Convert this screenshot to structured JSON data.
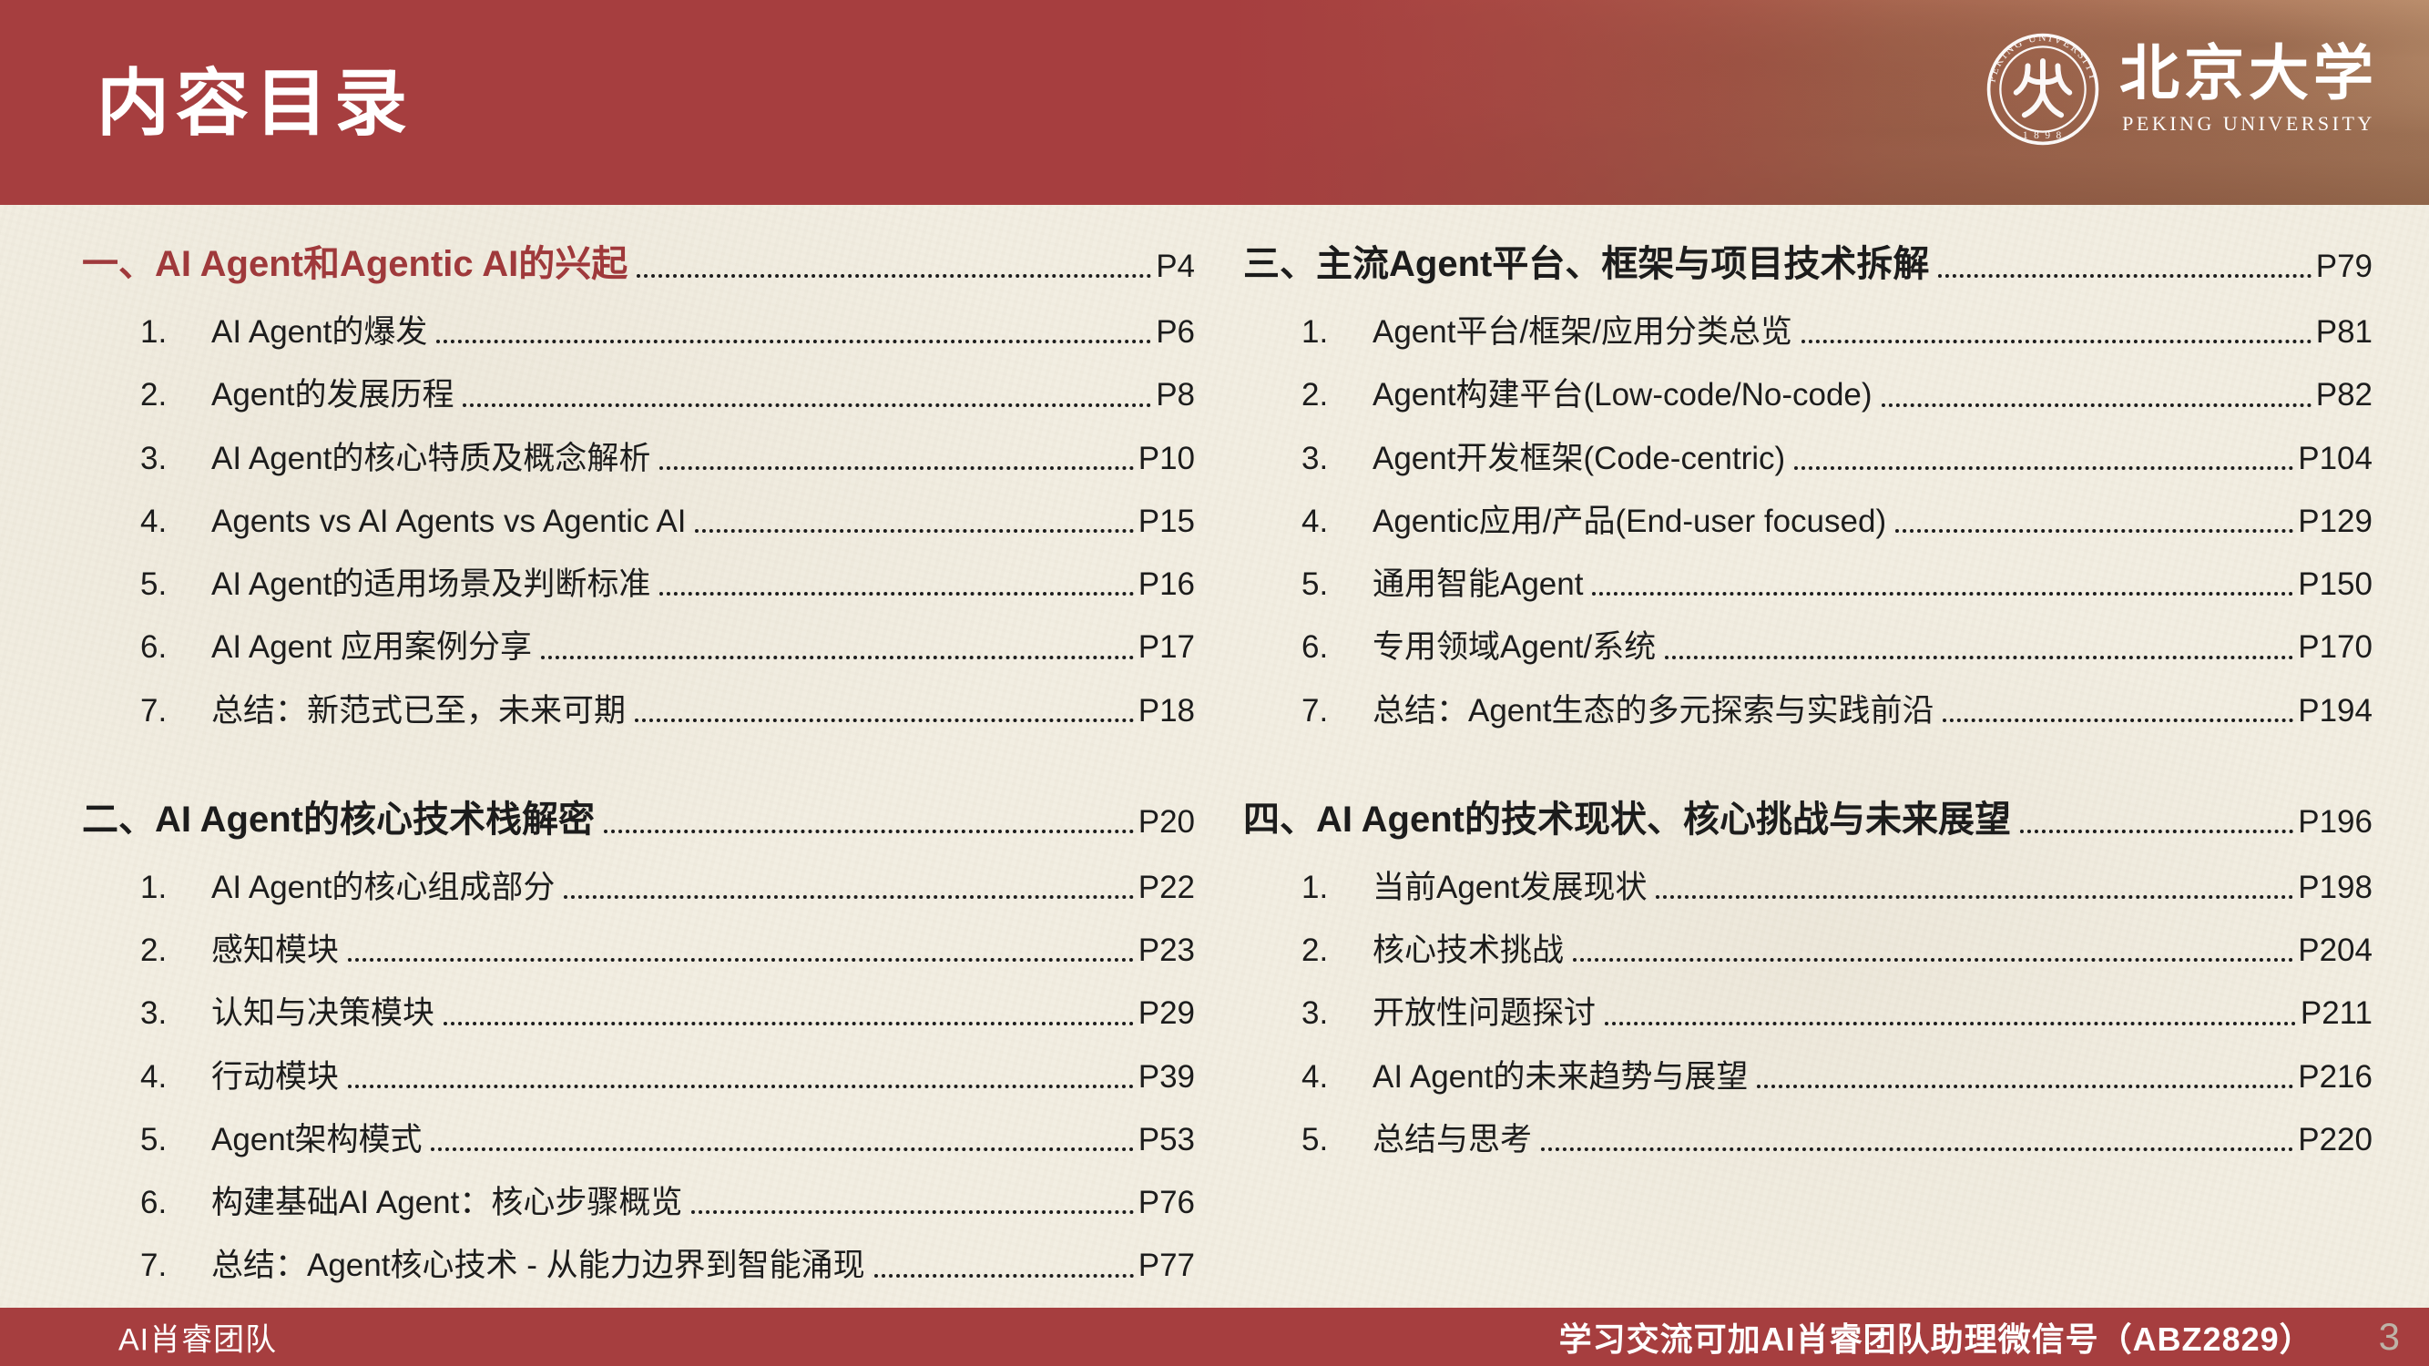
{
  "colors": {
    "accent": "#a63e3f",
    "heading_red": "#9f393b",
    "text": "#1c1c1c",
    "paper": "#f2eee2",
    "footer_page_muted": "#bdb3a7"
  },
  "header": {
    "title": "内容目录",
    "logo": {
      "seal_arc_text": "PEKING UNIVERSITY",
      "seal_year": "1 8 9 8",
      "cn_name": "北京大学",
      "en_name": "PEKING UNIVERSITY"
    }
  },
  "toc": {
    "columns": [
      {
        "sections": [
          {
            "label": "一、AI Agent和Agentic AI的兴起",
            "page": "P4",
            "highlight": true,
            "items": [
              {
                "num": "1.",
                "label": "AI Agent的爆发",
                "page": "P6"
              },
              {
                "num": "2.",
                "label": "Agent的发展历程",
                "page": "P8"
              },
              {
                "num": "3.",
                "label": "AI Agent的核心特质及概念解析",
                "page": "P10"
              },
              {
                "num": "4.",
                "label": "Agents vs AI Agents vs Agentic AI",
                "page": "P15"
              },
              {
                "num": "5.",
                "label": "AI Agent的适用场景及判断标准",
                "page": "P16"
              },
              {
                "num": "6.",
                "label": "AI Agent 应用案例分享",
                "page": "P17"
              },
              {
                "num": "7.",
                "label": "总结：新范式已至，未来可期",
                "page": "P18"
              }
            ]
          },
          {
            "label": "二、AI Agent的核心技术栈解密",
            "page": "P20",
            "highlight": false,
            "items": [
              {
                "num": "1.",
                "label": "AI Agent的核心组成部分",
                "page": "P22"
              },
              {
                "num": "2.",
                "label": "感知模块",
                "page": "P23"
              },
              {
                "num": "3.",
                "label": "认知与决策模块",
                "page": "P29"
              },
              {
                "num": "4.",
                "label": "行动模块",
                "page": "P39"
              },
              {
                "num": "5.",
                "label": "Agent架构模式",
                "page": "P53"
              },
              {
                "num": "6.",
                "label": "构建基础AI Agent：核心步骤概览",
                "page": "P76"
              },
              {
                "num": "7.",
                "label": "总结：Agent核心技术 - 从能力边界到智能涌现",
                "page": "P77"
              }
            ]
          }
        ]
      },
      {
        "sections": [
          {
            "label": "三、主流Agent平台、框架与项目技术拆解",
            "page": "P79",
            "highlight": false,
            "items": [
              {
                "num": "1.",
                "label": "Agent平台/框架/应用分类总览",
                "page": "P81"
              },
              {
                "num": "2.",
                "label": "Agent构建平台(Low-code/No-code)",
                "page": "P82"
              },
              {
                "num": "3.",
                "label": "Agent开发框架(Code-centric)",
                "page": "P104"
              },
              {
                "num": "4.",
                "label": "Agentic应用/产品(End-user focused)",
                "page": "P129"
              },
              {
                "num": "5.",
                "label": "通用智能Agent",
                "page": "P150"
              },
              {
                "num": "6.",
                "label": "专用领域Agent/系统",
                "page": "P170"
              },
              {
                "num": "7.",
                "label": "总结：Agent生态的多元探索与实践前沿",
                "page": "P194"
              }
            ]
          },
          {
            "label": "四、AI Agent的技术现状、核心挑战与未来展望",
            "page": "P196",
            "highlight": false,
            "items": [
              {
                "num": "1.",
                "label": "当前Agent发展现状",
                "page": "P198"
              },
              {
                "num": "2.",
                "label": "核心技术挑战",
                "page": "P204"
              },
              {
                "num": "3.",
                "label": "开放性问题探讨",
                "page": "P211"
              },
              {
                "num": "4.",
                "label": "AI Agent的未来趋势与展望",
                "page": "P216"
              },
              {
                "num": "5.",
                "label": "总结与思考",
                "page": "P220"
              }
            ]
          }
        ]
      }
    ]
  },
  "footer": {
    "team": "AI肖睿团队",
    "message": "学习交流可加AI肖睿团队助理微信号（ABZ2829）",
    "page_number": "3"
  }
}
